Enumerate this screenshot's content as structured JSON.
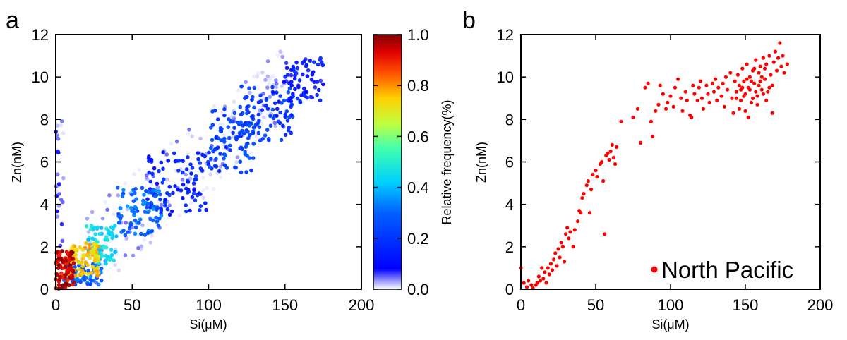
{
  "chart_data": [
    {
      "panel_label": "a",
      "type": "scatter",
      "xlabel": "Si(μM)",
      "ylabel": "Zn(nM)",
      "xlim": [
        0,
        200
      ],
      "ylim": [
        0,
        12
      ],
      "xticks": [
        "0",
        "50",
        "100",
        "150",
        "200"
      ],
      "yticks": [
        "0",
        "2",
        "4",
        "6",
        "8",
        "10",
        "12"
      ],
      "colorbar": {
        "label": "Relative frequency(%)",
        "range": [
          0,
          1
        ],
        "ticks": [
          "0.0",
          "0.2",
          "0.4",
          "0.6",
          "0.8",
          "1.0"
        ],
        "colormap": "jet"
      },
      "clusters": [
        {
          "x": [
            0,
            12
          ],
          "y": [
            0,
            1.8
          ],
          "freq": 0.95,
          "n": 90
        },
        {
          "x": [
            8,
            28
          ],
          "y": [
            0.6,
            2.2
          ],
          "freq": 0.75,
          "n": 90
        },
        {
          "x": [
            20,
            40
          ],
          "y": [
            1.2,
            3.0
          ],
          "freq": 0.45,
          "n": 80
        },
        {
          "x": [
            5,
            30
          ],
          "y": [
            0.2,
            1.2
          ],
          "freq": 0.3,
          "n": 70
        },
        {
          "x": [
            40,
            70
          ],
          "y": [
            2.5,
            4.8
          ],
          "freq": 0.3,
          "n": 80
        },
        {
          "x": [
            60,
            100
          ],
          "y": [
            3.5,
            6.5
          ],
          "freq": 0.15,
          "n": 90
        },
        {
          "x": [
            100,
            130
          ],
          "y": [
            5.5,
            8.5
          ],
          "freq": 0.22,
          "n": 90
        },
        {
          "x": [
            120,
            155
          ],
          "y": [
            7.0,
            9.6
          ],
          "freq": 0.2,
          "n": 80
        },
        {
          "x": [
            145,
            175
          ],
          "y": [
            8.8,
            10.9
          ],
          "freq": 0.12,
          "n": 70
        },
        {
          "x": [
            0,
            5
          ],
          "y": [
            2.0,
            8.0
          ],
          "freq": 0.06,
          "n": 25
        },
        {
          "x": [
            20,
            150
          ],
          "y": [
            2.0,
            11.0
          ],
          "freq": 0.03,
          "n": 200
        }
      ]
    },
    {
      "panel_label": "b",
      "type": "scatter",
      "xlabel": "Si(μM)",
      "ylabel": "Zn(nM)",
      "xlim": [
        0,
        200
      ],
      "ylim": [
        0,
        12
      ],
      "xticks": [
        "0",
        "50",
        "100",
        "150",
        "200"
      ],
      "yticks": [
        "0",
        "2",
        "4",
        "6",
        "8",
        "10",
        "12"
      ],
      "legend": "North Pacific",
      "legend_position": "bottom-right",
      "series_color": "#ff0000",
      "points": [
        [
          0,
          1.0
        ],
        [
          2,
          0.3
        ],
        [
          4,
          0.1
        ],
        [
          5,
          0.4
        ],
        [
          7,
          0.2
        ],
        [
          8,
          0.05
        ],
        [
          10,
          0.2
        ],
        [
          11,
          0.3
        ],
        [
          12,
          0.6
        ],
        [
          13,
          0.4
        ],
        [
          14,
          1.0
        ],
        [
          15,
          0.5
        ],
        [
          16,
          0.8
        ],
        [
          17,
          0.3
        ],
        [
          18,
          1.0
        ],
        [
          19,
          0.7
        ],
        [
          20,
          1.2
        ],
        [
          21,
          0.9
        ],
        [
          22,
          1.4
        ],
        [
          23,
          1.7
        ],
        [
          24,
          1.1
        ],
        [
          25,
          1.9
        ],
        [
          26,
          1.5
        ],
        [
          27,
          2.2
        ],
        [
          28,
          2.0
        ],
        [
          29,
          1.3
        ],
        [
          30,
          2.6
        ],
        [
          31,
          2.9
        ],
        [
          32,
          2.4
        ],
        [
          33,
          2.7
        ],
        [
          35,
          2.0
        ],
        [
          36,
          2.8
        ],
        [
          38,
          3.2
        ],
        [
          39,
          3.7
        ],
        [
          40,
          3.6
        ],
        [
          41,
          4.3
        ],
        [
          42,
          4.5
        ],
        [
          44,
          4.9
        ],
        [
          45,
          5.1
        ],
        [
          46,
          3.6
        ],
        [
          47,
          4.7
        ],
        [
          48,
          5.4
        ],
        [
          50,
          5.6
        ],
        [
          51,
          5.3
        ],
        [
          53,
          5.9
        ],
        [
          54,
          6.0
        ],
        [
          55,
          5.1
        ],
        [
          56,
          2.6
        ],
        [
          57,
          6.3
        ],
        [
          58,
          6.4
        ],
        [
          59,
          6.1
        ],
        [
          60,
          6.5
        ],
        [
          61,
          6.8
        ],
        [
          62,
          6.2
        ],
        [
          63,
          5.9
        ],
        [
          64,
          6.7
        ],
        [
          67,
          7.9
        ],
        [
          75,
          8.1
        ],
        [
          78,
          8.5
        ],
        [
          80,
          6.9
        ],
        [
          83,
          9.5
        ],
        [
          85,
          9.7
        ],
        [
          87,
          7.9
        ],
        [
          88,
          7.2
        ],
        [
          90,
          8.4
        ],
        [
          92,
          8.7
        ],
        [
          93,
          9.6
        ],
        [
          95,
          9.2
        ],
        [
          97,
          8.5
        ],
        [
          98,
          8.8
        ],
        [
          100,
          9.1
        ],
        [
          102,
          8.6
        ],
        [
          103,
          9.5
        ],
        [
          105,
          9.9
        ],
        [
          107,
          9.0
        ],
        [
          108,
          8.4
        ],
        [
          110,
          9.3
        ],
        [
          111,
          8.9
        ],
        [
          113,
          8.2
        ],
        [
          114,
          8.1
        ],
        [
          115,
          9.6
        ],
        [
          116,
          9.2
        ],
        [
          118,
          8.9
        ],
        [
          119,
          9.5
        ],
        [
          120,
          9.8
        ],
        [
          121,
          9.0
        ],
        [
          122,
          8.5
        ],
        [
          124,
          9.6
        ],
        [
          125,
          9.2
        ],
        [
          126,
          8.8
        ],
        [
          128,
          9.7
        ],
        [
          129,
          9.3
        ],
        [
          130,
          9.9
        ],
        [
          131,
          8.9
        ],
        [
          132,
          9.5
        ],
        [
          134,
          9.1
        ],
        [
          135,
          9.7
        ],
        [
          136,
          8.6
        ],
        [
          137,
          10.0
        ],
        [
          138,
          9.4
        ],
        [
          140,
          10.2
        ],
        [
          141,
          9.0
        ],
        [
          142,
          8.3
        ],
        [
          143,
          9.8
        ],
        [
          144,
          9.3
        ],
        [
          145,
          10.1
        ],
        [
          146,
          9.6
        ],
        [
          147,
          8.9
        ],
        [
          148,
          10.4
        ],
        [
          149,
          9.8
        ],
        [
          150,
          9.2
        ],
        [
          151,
          10.6
        ],
        [
          152,
          9.5
        ],
        [
          153,
          10.0
        ],
        [
          154,
          8.8
        ],
        [
          155,
          10.3
        ],
        [
          156,
          9.7
        ],
        [
          157,
          10.8
        ],
        [
          158,
          9.1
        ],
        [
          159,
          10.2
        ],
        [
          160,
          10.5
        ],
        [
          161,
          9.4
        ],
        [
          162,
          10.9
        ],
        [
          163,
          9.9
        ],
        [
          164,
          10.6
        ],
        [
          165,
          9.3
        ],
        [
          166,
          11.0
        ],
        [
          167,
          10.1
        ],
        [
          168,
          9.6
        ],
        [
          169,
          10.7
        ],
        [
          170,
          11.2
        ],
        [
          171,
          10.3
        ],
        [
          172,
          10.9
        ],
        [
          173,
          11.6
        ],
        [
          174,
          10.5
        ],
        [
          175,
          11.0
        ],
        [
          176,
          10.2
        ],
        [
          178,
          10.6
        ],
        [
          150,
          8.4
        ],
        [
          152,
          8.1
        ],
        [
          155,
          9.0
        ],
        [
          158,
          8.7
        ],
        [
          160,
          9.8
        ],
        [
          162,
          9.2
        ],
        [
          164,
          8.9
        ],
        [
          166,
          9.5
        ],
        [
          168,
          8.3
        ],
        [
          146,
          8.5
        ],
        [
          144,
          9.0
        ],
        [
          148,
          9.5
        ],
        [
          151,
          9.9
        ],
        [
          153,
          9.4
        ],
        [
          156,
          10.4
        ],
        [
          159,
          9.6
        ],
        [
          161,
          10.0
        ],
        [
          163,
          10.4
        ],
        [
          157,
          9.3
        ],
        [
          154,
          9.8
        ],
        [
          149,
          9.1
        ],
        [
          147,
          9.4
        ]
      ]
    }
  ]
}
